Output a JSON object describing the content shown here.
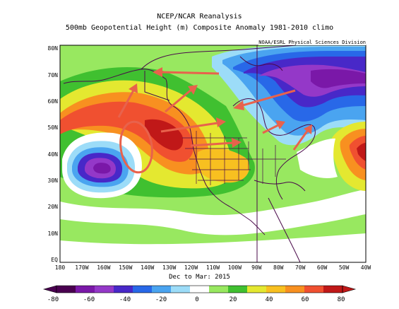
{
  "header": {
    "title": "NCEP/NCAR Reanalysis",
    "subtitle": "500mb Geopotential Height (m) Composite Anomaly 1981-2010 climo",
    "credit": "NOAA/ESRL Physical Sciences Division"
  },
  "map": {
    "period": "Dec to Mar: 2015",
    "lat_labels": [
      "80N",
      "70N",
      "60N",
      "50N",
      "40N",
      "30N",
      "20N",
      "10N",
      "EQ"
    ],
    "lon_labels": [
      "180",
      "170W",
      "160W",
      "150W",
      "140W",
      "130W",
      "120W",
      "110W",
      "100W",
      "90W",
      "80W",
      "70W",
      "60W",
      "50W",
      "40W"
    ],
    "extent": {
      "lon": [
        -180,
        -40
      ],
      "lat": [
        0,
        85
      ]
    },
    "features": [
      {
        "kind": "negative anomaly center",
        "lon": -160,
        "lat": 37,
        "value": -80
      },
      {
        "kind": "positive anomaly ridge",
        "lon": -125,
        "lat": 48,
        "value": 60
      },
      {
        "kind": "negative anomaly trough",
        "lon": -80,
        "lat": 65,
        "value": -60
      },
      {
        "kind": "positive anomaly",
        "lon": -42,
        "lat": 42,
        "value": 60
      },
      {
        "kind": "positive anomaly",
        "lon": -105,
        "lat": 37,
        "value": 40
      }
    ],
    "annotation_colors": {
      "arrows": "#e8624c",
      "circle": "#e8624c"
    }
  },
  "colorbar": {
    "ticks": [
      "-80",
      "-60",
      "-40",
      "-20",
      "0",
      "20",
      "40",
      "60",
      "80"
    ],
    "colors": [
      "#4a0050",
      "#7a18a8",
      "#9438c8",
      "#4828c8",
      "#2868e8",
      "#4aa4f0",
      "#9cdcf8",
      "#ffffff",
      "#98e860",
      "#40c030",
      "#e4e830",
      "#f8c020",
      "#f89020",
      "#f05030",
      "#c01818"
    ]
  }
}
